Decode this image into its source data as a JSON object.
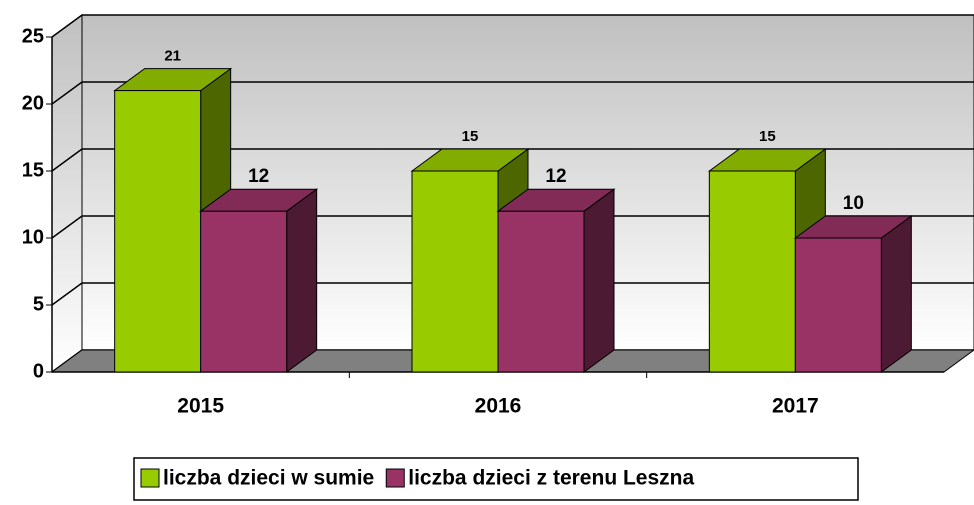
{
  "chart_data": {
    "type": "bar3d",
    "categories": [
      "2015",
      "2016",
      "2017"
    ],
    "series": [
      {
        "name": "liczba dzieci w sumie",
        "color": "#99cc00",
        "values": [
          21,
          15,
          15
        ]
      },
      {
        "name": "liczba dzieci z terenu Leszna",
        "color": "#993366",
        "values": [
          12,
          12,
          10
        ]
      }
    ],
    "ylim": [
      0,
      25
    ],
    "yticks": [
      0,
      5,
      10,
      15,
      20,
      25
    ],
    "grid": true,
    "legend": "bottom"
  }
}
